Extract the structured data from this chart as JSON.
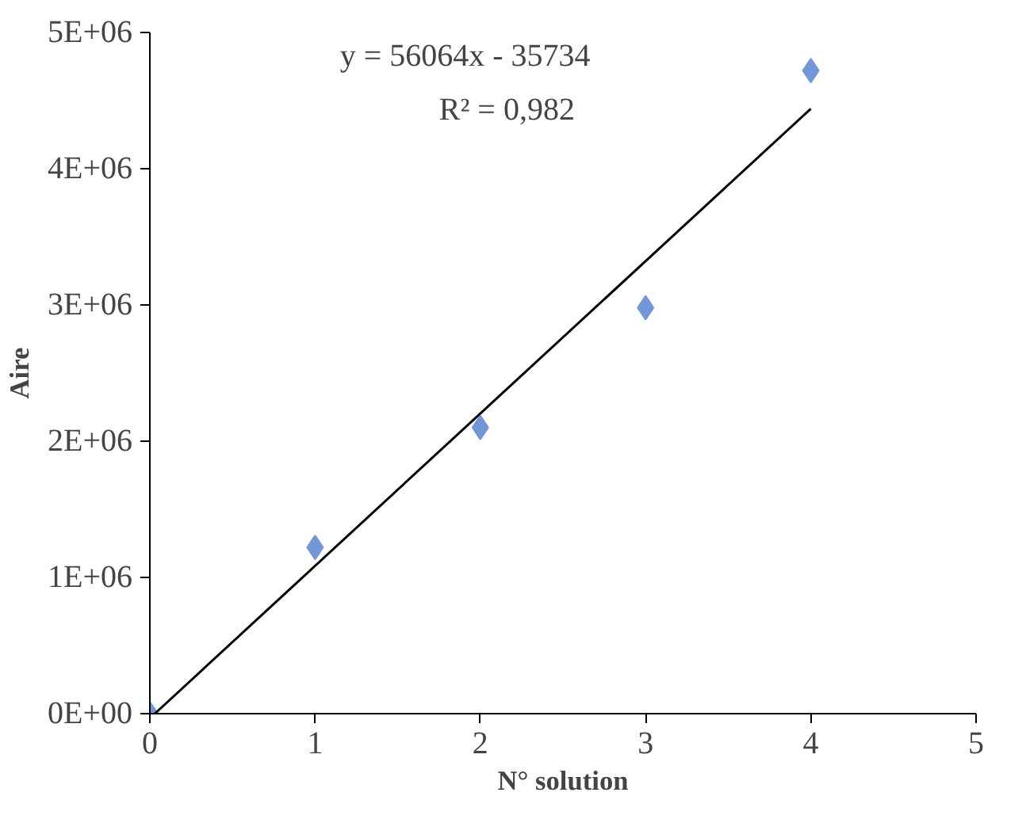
{
  "chart_data": {
    "type": "scatter",
    "xlabel": "N° solution",
    "ylabel": "Aire",
    "xlim": [
      0,
      5
    ],
    "ylim": [
      0,
      5000000
    ],
    "xticks": [
      0,
      1,
      2,
      3,
      4,
      5
    ],
    "yticks": [
      {
        "value": 0,
        "label": "0E+00"
      },
      {
        "value": 1000000,
        "label": "1E+06"
      },
      {
        "value": 2000000,
        "label": "2E+06"
      },
      {
        "value": 3000000,
        "label": "3E+06"
      },
      {
        "value": 4000000,
        "label": "4E+06"
      },
      {
        "value": 5000000,
        "label": "5E+06"
      }
    ],
    "series": [
      {
        "color": "#7396d6",
        "marker": "diamond",
        "x": [
          0,
          1,
          2,
          3,
          4
        ],
        "values": [
          0,
          1220000,
          2100000,
          2980000,
          4720000
        ]
      },
      {
        "type": "line",
        "color": "#000000",
        "x": [
          0.03,
          4
        ],
        "values": [
          0,
          4440000
        ]
      }
    ],
    "annotations": [
      "y = 56064x - 35734",
      "R² = 0,982"
    ],
    "grid": false
  }
}
